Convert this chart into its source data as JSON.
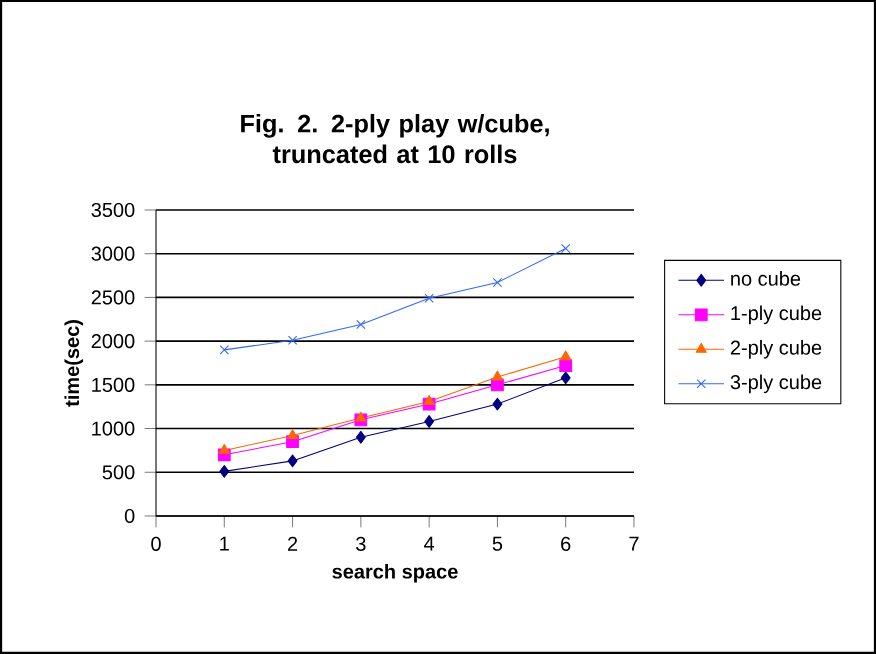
{
  "chart_data": {
    "type": "line",
    "title": "Fig. 2.  2-ply play w/cube, truncated at 10 rolls",
    "xlabel": "search space",
    "ylabel": "time(sec)",
    "x": [
      1,
      2,
      3,
      4,
      5,
      6
    ],
    "series": [
      {
        "name": "no cube",
        "color": "#000080",
        "marker": "diamond",
        "values": [
          510,
          630,
          900,
          1080,
          1280,
          1580
        ]
      },
      {
        "name": "1-ply cube",
        "color": "#ff00ff",
        "marker": "square",
        "values": [
          700,
          850,
          1100,
          1280,
          1500,
          1720
        ]
      },
      {
        "name": "2-ply cube",
        "color": "#ff6600",
        "marker": "triangle",
        "values": [
          750,
          920,
          1120,
          1310,
          1590,
          1820
        ]
      },
      {
        "name": "3-ply cube",
        "color": "#3366ff",
        "marker": "cross",
        "values": [
          1900,
          2010,
          2190,
          2490,
          2670,
          3060
        ]
      }
    ],
    "xlim": [
      0,
      7
    ],
    "xticks": [
      0,
      1,
      2,
      3,
      4,
      5,
      6,
      7
    ],
    "ylim": [
      0,
      3500
    ],
    "yticks": [
      0,
      500,
      1000,
      1500,
      2000,
      2500,
      3000,
      3500
    ],
    "grid": "y",
    "legend": "right",
    "line_style": "solid"
  }
}
